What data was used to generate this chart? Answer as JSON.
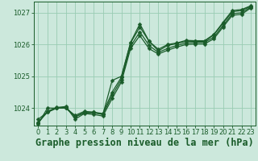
{
  "title": "Graphe pression niveau de la mer (hPa)",
  "bg_color": "#cce8dc",
  "grid_color": "#99ccb3",
  "line_color": "#1a5c2a",
  "xlim": [
    -0.5,
    23.5
  ],
  "ylim": [
    1023.45,
    1027.35
  ],
  "yticks": [
    1024,
    1025,
    1026,
    1027
  ],
  "xticks": [
    0,
    1,
    2,
    3,
    4,
    5,
    6,
    7,
    8,
    9,
    10,
    11,
    12,
    13,
    14,
    15,
    16,
    17,
    18,
    19,
    20,
    21,
    22,
    23
  ],
  "series": [
    [
      1023.65,
      1023.87,
      1024.0,
      1024.0,
      1023.73,
      1023.87,
      1023.87,
      1023.83,
      1024.5,
      1024.97,
      1026.05,
      1026.55,
      1026.1,
      1025.8,
      1025.97,
      1026.03,
      1026.1,
      1026.1,
      1026.1,
      1026.3,
      1026.67,
      1027.03,
      1027.07,
      1027.2
    ],
    [
      1023.55,
      1023.87,
      1024.0,
      1024.03,
      1023.72,
      1023.85,
      1023.85,
      1023.8,
      1024.4,
      1024.9,
      1025.95,
      1026.4,
      1025.97,
      1025.75,
      1025.88,
      1025.97,
      1026.05,
      1026.07,
      1026.07,
      1026.23,
      1026.6,
      1026.97,
      1027.0,
      1027.18
    ],
    [
      1023.53,
      1023.9,
      1024.02,
      1024.05,
      1023.65,
      1023.83,
      1023.8,
      1023.75,
      1024.3,
      1024.82,
      1025.88,
      1026.28,
      1025.87,
      1025.7,
      1025.82,
      1025.92,
      1026.0,
      1026.02,
      1026.02,
      1026.18,
      1026.55,
      1026.92,
      1026.95,
      1027.15
    ],
    [
      1023.5,
      1024.0,
      1024.0,
      1024.0,
      1023.77,
      1023.9,
      1023.87,
      1023.8,
      1024.87,
      1025.0,
      1026.07,
      1026.65,
      1026.1,
      1025.85,
      1026.0,
      1026.05,
      1026.13,
      1026.12,
      1026.12,
      1026.32,
      1026.7,
      1027.07,
      1027.1,
      1027.22
    ]
  ],
  "marker_size": 2.5,
  "line_width": 0.9,
  "title_fontsize": 8.5,
  "tick_fontsize": 6
}
